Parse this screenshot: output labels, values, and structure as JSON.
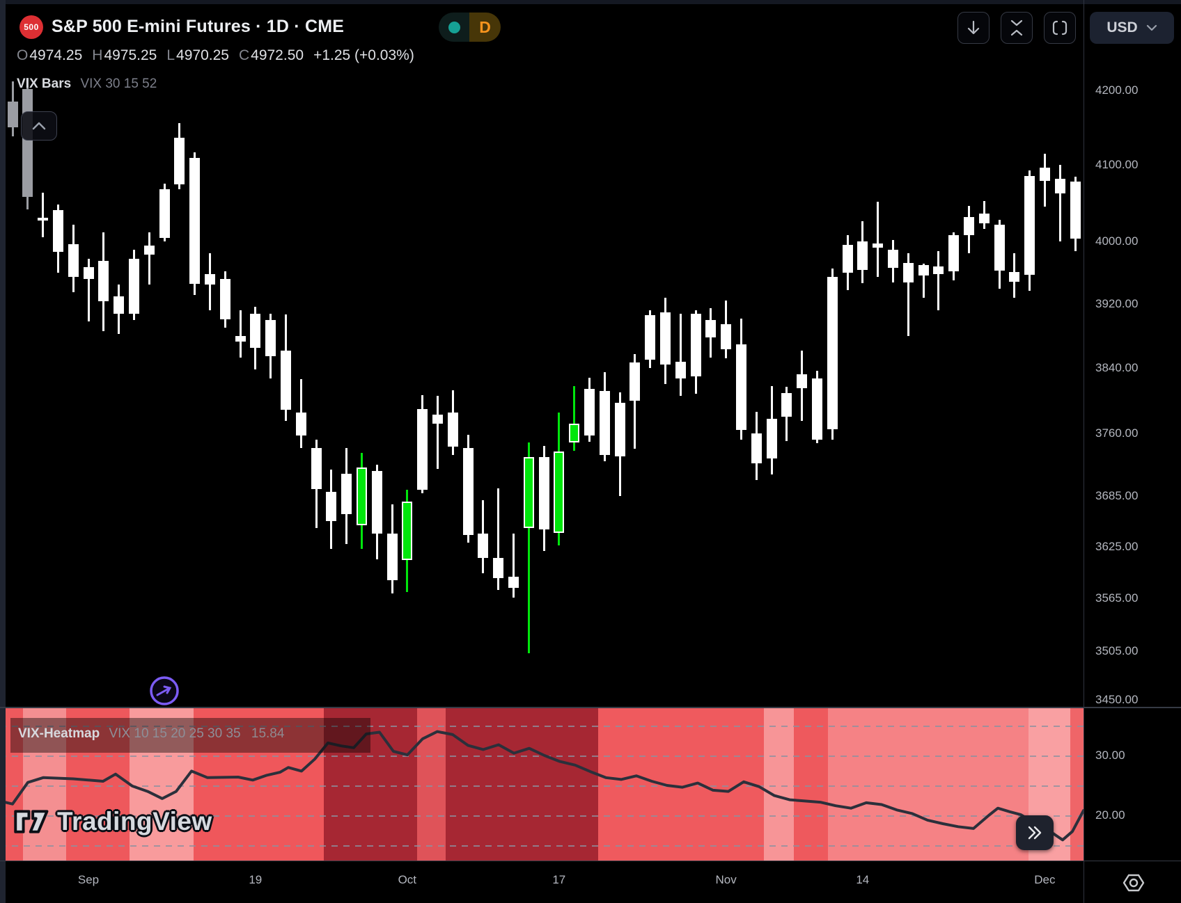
{
  "header": {
    "symbol_badge": "500",
    "title": "S&P 500 E-mini Futures · 1D · CME",
    "interval_label": "D",
    "market_dot_color": "#16a195",
    "interval_color": "#f7941d"
  },
  "ohlc": {
    "open_label": "O",
    "open": "4974.25",
    "high_label": "H",
    "high": "4975.25",
    "low_label": "L",
    "low": "4970.25",
    "close_label": "C",
    "close": "4972.50",
    "change": "+1.25 (+0.03%)"
  },
  "toolbar": {
    "currency": "USD"
  },
  "main_legend": {
    "title": "VIX Bars",
    "params": "VIX 30 15 52"
  },
  "heatmap_legend": {
    "title": "VIX-Heatmap",
    "params": "VIX 10 15 20 25 30 35",
    "value": "15.84"
  },
  "watermark_text": "TradingView",
  "chart_data": {
    "type": "candlestick",
    "title": "S&P 500 E-mini Futures, 1D, CME",
    "price_scale": "log",
    "price_axis_labels": [
      {
        "text": "4200.00",
        "value": 4200
      },
      {
        "text": "4100.00",
        "value": 4100
      },
      {
        "text": "4000.00",
        "value": 4000
      },
      {
        "text": "3920.00",
        "value": 3920
      },
      {
        "text": "3840.00",
        "value": 3840
      },
      {
        "text": "3760.00",
        "value": 3760
      },
      {
        "text": "3685.00",
        "value": 3685
      },
      {
        "text": "3625.00",
        "value": 3625
      },
      {
        "text": "3565.00",
        "value": 3565
      },
      {
        "text": "3505.00",
        "value": 3505
      },
      {
        "text": "3450.00",
        "value": 3450
      }
    ],
    "time_axis_labels": [
      {
        "text": "Sep",
        "index": 5
      },
      {
        "text": "19",
        "index": 16
      },
      {
        "text": "Oct",
        "index": 26
      },
      {
        "text": "17",
        "index": 36
      },
      {
        "text": "Nov",
        "index": 47
      },
      {
        "text": "14",
        "index": 56
      },
      {
        "text": "Dec",
        "index": 68
      }
    ],
    "candle_colors": {
      "0": "#ffffff",
      "1": "#00e60c",
      "2": "#9b9da3"
    },
    "candles": [
      [
        4185,
        4212,
        4138,
        4150,
        2
      ],
      [
        4202,
        4217,
        4042,
        4058,
        2
      ],
      [
        4030,
        4064,
        4006,
        4031,
        0
      ],
      [
        4041,
        4048,
        3960,
        3987,
        0
      ],
      [
        3997,
        4022,
        3935,
        3955,
        0
      ],
      [
        3952,
        3978,
        3898,
        3967,
        0
      ],
      [
        3975,
        4012,
        3886,
        3924,
        0
      ],
      [
        3930,
        3945,
        3883,
        3908,
        0
      ],
      [
        3908,
        3990,
        3900,
        3978,
        0
      ],
      [
        3983,
        4012,
        3945,
        3995,
        0
      ],
      [
        4005,
        4076,
        4000,
        4068,
        0
      ],
      [
        4075,
        4156,
        4068,
        4136,
        0
      ],
      [
        4110,
        4117,
        3932,
        3946,
        0
      ],
      [
        3945,
        3985,
        3912,
        3958,
        0
      ],
      [
        3952,
        3962,
        3890,
        3901,
        0
      ],
      [
        3880,
        3912,
        3853,
        3873,
        0
      ],
      [
        3865,
        3917,
        3838,
        3908,
        0
      ],
      [
        3900,
        3908,
        3827,
        3855,
        0
      ],
      [
        3862,
        3907,
        3775,
        3789,
        0
      ],
      [
        3785,
        3826,
        3742,
        3757,
        0
      ],
      [
        3742,
        3752,
        3647,
        3693,
        0
      ],
      [
        3690,
        3716,
        3622,
        3655,
        0
      ],
      [
        3711,
        3742,
        3628,
        3663,
        0
      ],
      [
        3650,
        3736,
        3622,
        3719,
        1
      ],
      [
        3715,
        3722,
        3610,
        3640,
        0
      ],
      [
        3640,
        3675,
        3571,
        3586,
        0
      ],
      [
        3609,
        3692,
        3572,
        3678,
        1
      ],
      [
        3692,
        3807,
        3688,
        3790,
        0
      ],
      [
        3772,
        3806,
        3717,
        3783,
        0
      ],
      [
        3785,
        3813,
        3734,
        3744,
        0
      ],
      [
        3742,
        3758,
        3630,
        3639,
        0
      ],
      [
        3640,
        3680,
        3594,
        3612,
        0
      ],
      [
        3612,
        3694,
        3575,
        3588,
        0
      ],
      [
        3590,
        3640,
        3566,
        3577,
        0
      ],
      [
        3647,
        3749,
        3502,
        3731,
        1
      ],
      [
        3731,
        3745,
        3620,
        3645,
        0
      ],
      [
        3738,
        3785,
        3626,
        3641,
        1
      ],
      [
        3749,
        3818,
        3739,
        3772,
        1
      ],
      [
        3757,
        3828,
        3750,
        3814,
        0
      ],
      [
        3812,
        3835,
        3726,
        3734,
        0
      ],
      [
        3732,
        3810,
        3685,
        3797,
        0
      ],
      [
        3800,
        3857,
        3741,
        3847,
        0
      ],
      [
        3850,
        3912,
        3840,
        3906,
        0
      ],
      [
        3910,
        3928,
        3820,
        3844,
        0
      ],
      [
        3848,
        3908,
        3806,
        3827,
        0
      ],
      [
        3830,
        3912,
        3808,
        3908,
        0
      ],
      [
        3900,
        3915,
        3853,
        3878,
        0
      ],
      [
        3895,
        3925,
        3852,
        3863,
        0
      ],
      [
        3870,
        3902,
        3752,
        3764,
        0
      ],
      [
        3760,
        3786,
        3704,
        3724,
        0
      ],
      [
        3730,
        3818,
        3710,
        3778,
        0
      ],
      [
        3780,
        3817,
        3751,
        3809,
        0
      ],
      [
        3815,
        3862,
        3775,
        3832,
        0
      ],
      [
        3827,
        3837,
        3748,
        3752,
        0
      ],
      [
        3765,
        3965,
        3752,
        3955,
        0
      ],
      [
        3960,
        4008,
        3938,
        3996,
        0
      ],
      [
        4000,
        4026,
        3947,
        3964,
        0
      ],
      [
        3992,
        4052,
        3955,
        3998,
        0
      ],
      [
        3990,
        4002,
        3948,
        3966,
        0
      ],
      [
        3973,
        3985,
        3880,
        3948,
        0
      ],
      [
        3956,
        3972,
        3928,
        3970,
        0
      ],
      [
        3968,
        3988,
        3912,
        3958,
        0
      ],
      [
        3962,
        4012,
        3950,
        4008,
        0
      ],
      [
        4008,
        4046,
        3985,
        4032,
        0
      ],
      [
        4036,
        4053,
        4016,
        4024,
        0
      ],
      [
        4022,
        4028,
        3940,
        3963,
        0
      ],
      [
        3961,
        3985,
        3928,
        3948,
        0
      ],
      [
        3957,
        4093,
        3937,
        4086,
        0
      ],
      [
        4097,
        4115,
        4045,
        4079,
        0
      ],
      [
        4082,
        4100,
        4000,
        4063,
        0
      ],
      [
        4078,
        4085,
        3988,
        4004,
        0
      ]
    ],
    "vix_axis_labels": [
      {
        "text": "30.00",
        "value": 30
      },
      {
        "text": "20.00",
        "value": 20
      }
    ],
    "vix_gridline_values": [
      35,
      30,
      25,
      20,
      15
    ],
    "vix_line_color": "#2b303b",
    "vix_line": [
      [
        0,
        22.4
      ],
      [
        18,
        21.9
      ],
      [
        40,
        25.5
      ],
      [
        62,
        26.3
      ],
      [
        105,
        26.1
      ],
      [
        148,
        25.7
      ],
      [
        166,
        26.9
      ],
      [
        190,
        24.9
      ],
      [
        212,
        24.0
      ],
      [
        233,
        22.8
      ],
      [
        253,
        24.0
      ],
      [
        275,
        27.4
      ],
      [
        298,
        26.3
      ],
      [
        342,
        26.4
      ],
      [
        363,
        25.9
      ],
      [
        383,
        26.7
      ],
      [
        402,
        27.2
      ],
      [
        414,
        28.0
      ],
      [
        433,
        27.4
      ],
      [
        452,
        29.4
      ],
      [
        471,
        32.1
      ],
      [
        490,
        31.6
      ],
      [
        508,
        31.3
      ],
      [
        526,
        33.6
      ],
      [
        545,
        33.9
      ],
      [
        565,
        30.7
      ],
      [
        585,
        30.1
      ],
      [
        607,
        32.8
      ],
      [
        628,
        34.0
      ],
      [
        650,
        33.5
      ],
      [
        672,
        31.7
      ],
      [
        694,
        31.0
      ],
      [
        716,
        31.8
      ],
      [
        738,
        30.4
      ],
      [
        760,
        31.2
      ],
      [
        782,
        30.0
      ],
      [
        804,
        29.0
      ],
      [
        826,
        28.4
      ],
      [
        848,
        27.3
      ],
      [
        870,
        26.3
      ],
      [
        892,
        26.0
      ],
      [
        914,
        26.6
      ],
      [
        936,
        25.7
      ],
      [
        958,
        25.0
      ],
      [
        980,
        24.7
      ],
      [
        1002,
        25.4
      ],
      [
        1024,
        24.2
      ],
      [
        1046,
        24.0
      ],
      [
        1068,
        25.6
      ],
      [
        1090,
        24.8
      ],
      [
        1112,
        23.3
      ],
      [
        1134,
        22.6
      ],
      [
        1156,
        22.4
      ],
      [
        1178,
        22.2
      ],
      [
        1200,
        21.6
      ],
      [
        1222,
        21.2
      ],
      [
        1244,
        22.1
      ],
      [
        1266,
        21.8
      ],
      [
        1288,
        20.9
      ],
      [
        1310,
        20.3
      ],
      [
        1332,
        19.2
      ],
      [
        1354,
        18.6
      ],
      [
        1376,
        18.1
      ],
      [
        1398,
        17.8
      ],
      [
        1420,
        20.0
      ],
      [
        1433,
        21.2
      ],
      [
        1450,
        20.6
      ],
      [
        1466,
        20.1
      ],
      [
        1482,
        19.0
      ],
      [
        1498,
        18.4
      ],
      [
        1512,
        17.0
      ],
      [
        1526,
        15.9
      ],
      [
        1540,
        17.3
      ],
      [
        1556,
        20.8
      ]
    ],
    "heatmap_stripes": [
      [
        0,
        33,
        "#ee595d"
      ],
      [
        33,
        95,
        "#f48f91"
      ],
      [
        95,
        186,
        "#ee585c"
      ],
      [
        186,
        278,
        "#f89b9c"
      ],
      [
        278,
        465,
        "#ef575b"
      ],
      [
        465,
        599,
        "#a62733"
      ],
      [
        599,
        640,
        "#df5359"
      ],
      [
        640,
        859,
        "#a62733"
      ],
      [
        859,
        1097,
        "#ef5a5e"
      ],
      [
        1097,
        1140,
        "#f79597"
      ],
      [
        1140,
        1189,
        "#ee595d"
      ],
      [
        1189,
        1477,
        "#f58285"
      ],
      [
        1477,
        1537,
        "#f9a0a2"
      ],
      [
        1537,
        1556,
        "#ef6568"
      ]
    ]
  }
}
